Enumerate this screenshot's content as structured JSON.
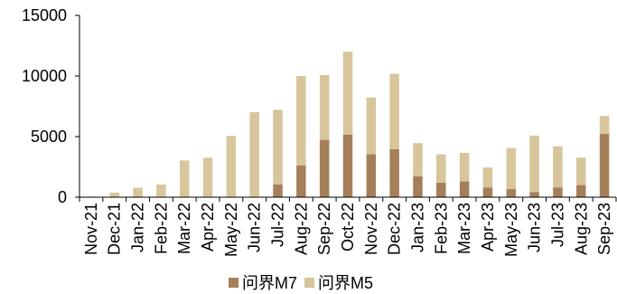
{
  "chart_data": {
    "type": "bar",
    "stacked": true,
    "categories": [
      "Nov-21",
      "Dec-21",
      "Jan-22",
      "Feb-22",
      "Mar-22",
      "Apr-22",
      "May-22",
      "Jun-22",
      "Jul-22",
      "Aug-22",
      "Sep-22",
      "Oct-22",
      "Nov-22",
      "Dec-22",
      "Jan-23",
      "Feb-23",
      "Mar-23",
      "Apr-23",
      "May-23",
      "Jun-23",
      "Jul-23",
      "Aug-23",
      "Sep-23"
    ],
    "series": [
      {
        "name": "问界M7",
        "color": "#A57F5A",
        "values": [
          0,
          0,
          0,
          0,
          0,
          0,
          0,
          0,
          1050,
          2620,
          4730,
          5170,
          3540,
          3970,
          1720,
          1210,
          1300,
          800,
          670,
          430,
          810,
          1000,
          5220
        ]
      },
      {
        "name": "问界M5",
        "color": "#D7C59C",
        "values": [
          50,
          380,
          780,
          1040,
          3030,
          3260,
          5050,
          7010,
          6160,
          7380,
          5350,
          6830,
          4680,
          6210,
          2740,
          2320,
          2360,
          1650,
          3390,
          4650,
          3390,
          2260,
          1480
        ]
      }
    ],
    "title": "",
    "xlabel": "",
    "ylabel": "",
    "ylim": [
      0,
      15000
    ],
    "yticks": [
      "0",
      "5000",
      "10000",
      "15000"
    ],
    "grid": false,
    "legend": "bottom"
  }
}
